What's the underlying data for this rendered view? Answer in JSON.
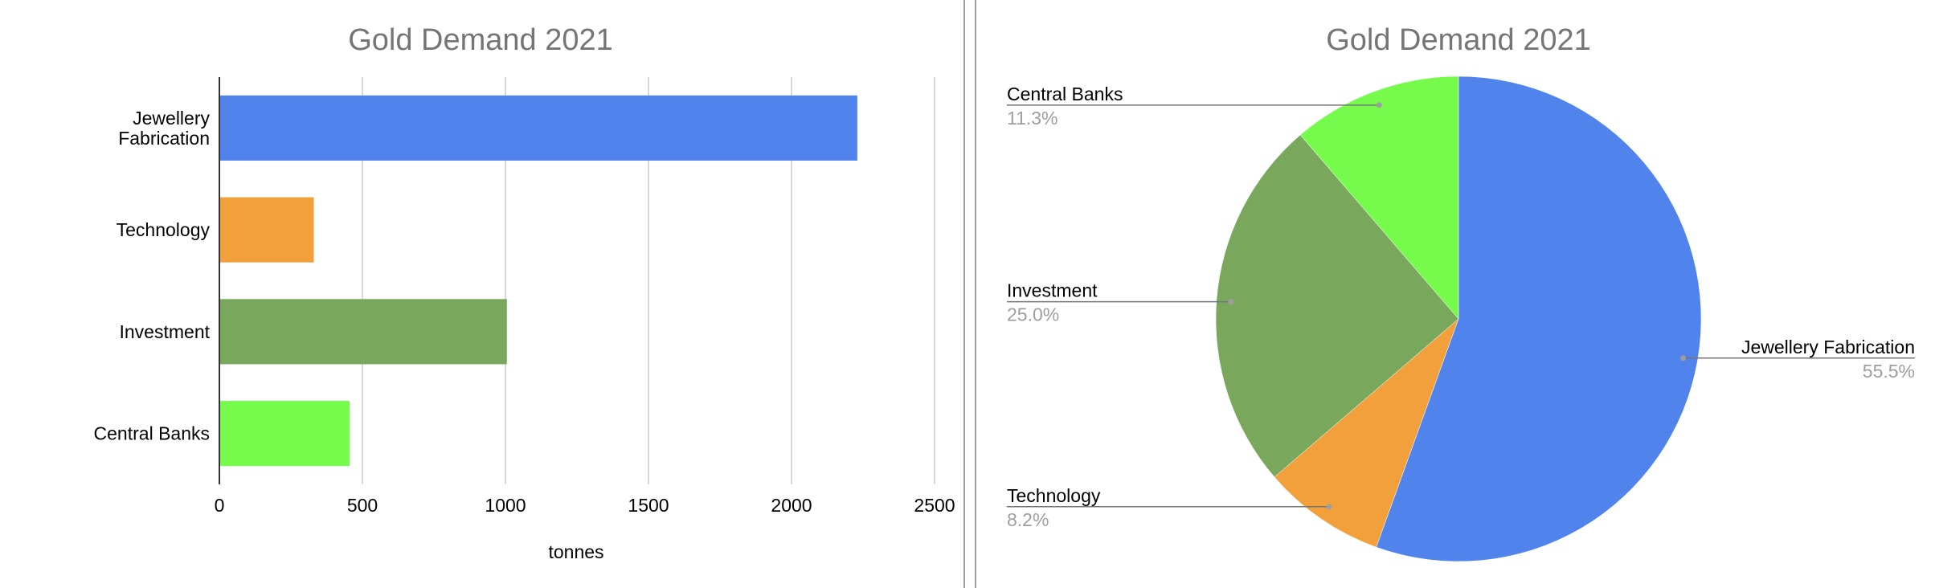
{
  "chart_data": [
    {
      "type": "bar",
      "orientation": "horizontal",
      "title": "Gold Demand 2021",
      "xlabel": "tonnes",
      "ylabel": "",
      "categories": [
        "Jewellery\nFabrication",
        "Technology",
        "Investment",
        "Central Banks"
      ],
      "values": [
        2230,
        330,
        1005,
        455
      ],
      "colors": [
        "#5083ec",
        "#f1a03b",
        "#79a85c",
        "#76fb4d"
      ],
      "xlim": [
        0,
        2500
      ],
      "xticks": [
        "0",
        "500",
        "1000",
        "1500",
        "2000",
        "2500"
      ],
      "grid": true
    },
    {
      "type": "pie",
      "title": "Gold Demand 2021",
      "slices": [
        {
          "label": "Jewellery Fabrication",
          "value": 55.5,
          "percent": "55.5%",
          "color": "#5083ec"
        },
        {
          "label": "Technology",
          "value": 8.2,
          "percent": "8.2%",
          "color": "#f1a03b"
        },
        {
          "label": "Investment",
          "value": 25.0,
          "percent": "25.0%",
          "color": "#79a85c"
        },
        {
          "label": "Central Banks",
          "value": 11.3,
          "percent": "11.3%",
          "color": "#76fb4d"
        }
      ],
      "label_placement": "outside with leader lines"
    }
  ]
}
